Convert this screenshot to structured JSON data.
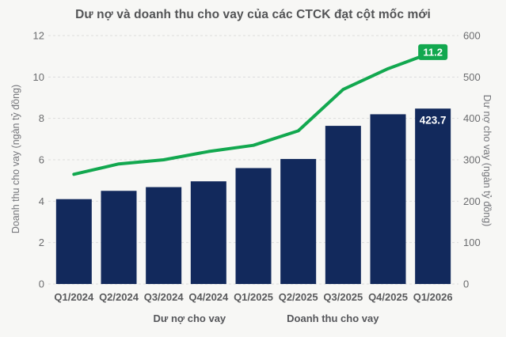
{
  "header": {
    "title": "Dư nợ và doanh thu cho vay của các CTCK đạt cột mốc mới"
  },
  "colors": {
    "bar_navy": "#12295c",
    "line_green": "#12a84f",
    "background": "#f7f7f5",
    "grid": "#dcdcdc",
    "tick_text": "#6b6c6e",
    "xlabel_text": "#595a5c",
    "annotation_text": "#ffffff"
  },
  "chart_data": {
    "type": "combo",
    "title": "Dư nợ và doanh thu cho vay của các CTCK đạt cột mốc mới",
    "categories": [
      "Q1/2024",
      "Q2/2024",
      "Q3/2024",
      "Q4/2024",
      "Q1/2025",
      "Q2/2025",
      "Q3/2025",
      "Q4/2025",
      "Q1/2026"
    ],
    "series": [
      {
        "name": "Dư nợ cho vay",
        "type": "bar",
        "axis": "right",
        "color": "#12295c",
        "values": [
          205,
          225,
          234,
          248,
          280,
          302,
          382,
          410,
          423.7
        ]
      },
      {
        "name": "Doanh thu cho vay",
        "type": "line",
        "axis": "left",
        "color": "#12a84f",
        "values": [
          5.3,
          5.8,
          6.0,
          6.4,
          6.7,
          7.4,
          9.4,
          10.4,
          11.2
        ]
      }
    ],
    "left_axis": {
      "label": "Doanh thu cho vay (ngàn tỷ đồng)",
      "min": 0,
      "max": 12,
      "ticks": [
        0,
        2,
        4,
        6,
        8,
        10,
        12
      ]
    },
    "right_axis": {
      "label": "Dư nợ cho vay (ngàn tỷ đồng)",
      "min": 0,
      "max": 600,
      "ticks": [
        0,
        100,
        200,
        300,
        400,
        500,
        600
      ]
    },
    "grid": "horizontal-dashed",
    "legend_position": "bottom",
    "annotations": [
      {
        "text": "423.7",
        "series": 0,
        "category_index": 8,
        "style": "white-on-bar"
      },
      {
        "text": "11.2",
        "series": 1,
        "category_index": 8,
        "style": "green-badge"
      }
    ]
  }
}
